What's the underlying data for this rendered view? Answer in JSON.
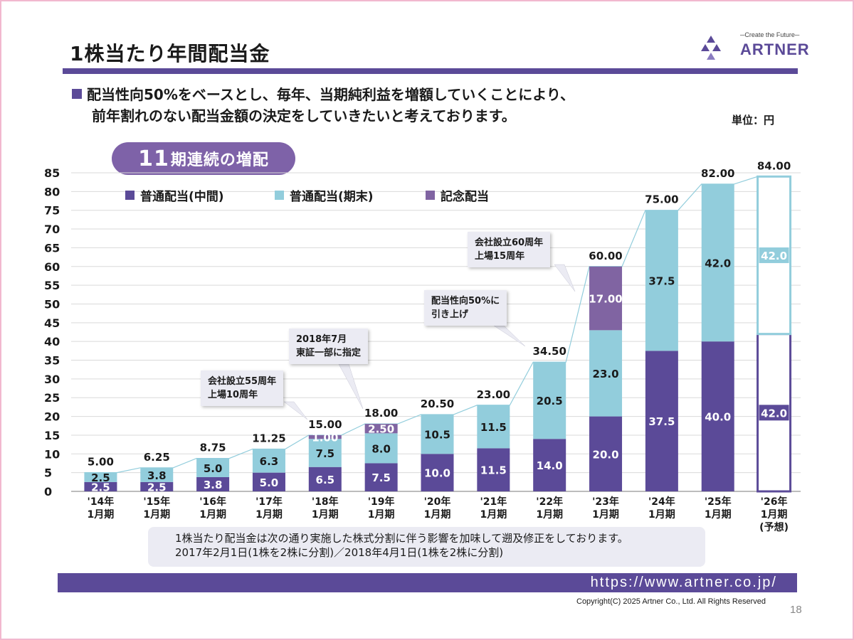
{
  "title": "1株当たり年間配当金",
  "logo": {
    "tagline": "─Create the Future─",
    "name": "ARTNER"
  },
  "description": [
    "配当性向50%をベースとし、毎年、当期純利益を増額していくことにより、",
    "前年割れのない配当金額の決定をしていきたいと考えております。"
  ],
  "unit": "単位：円",
  "badge": {
    "number": "11",
    "text": "期連続の増配"
  },
  "colors": {
    "interim": "#5b4a98",
    "year_end": "#92cddc",
    "commemorative": "#8064a2",
    "accent": "#5b4a98"
  },
  "chart_data": {
    "type": "bar",
    "stacked": true,
    "categories": [
      "'14年 1月期",
      "'15年 1月期",
      "'16年 1月期",
      "'17年 1月期",
      "'18年 1月期",
      "'19年 1月期",
      "'20年 1月期",
      "'21年 1月期",
      "'22年 1月期",
      "'23年 1月期",
      "'24年 1月期",
      "'25年 1月期",
      "'26年 1月期 (予想)"
    ],
    "x_tick_lines": [
      [
        "'14年",
        "1月期"
      ],
      [
        "'15年",
        "1月期"
      ],
      [
        "'16年",
        "1月期"
      ],
      [
        "'17年",
        "1月期"
      ],
      [
        "'18年",
        "1月期"
      ],
      [
        "'19年",
        "1月期"
      ],
      [
        "'20年",
        "1月期"
      ],
      [
        "'21年",
        "1月期"
      ],
      [
        "'22年",
        "1月期"
      ],
      [
        "'23年",
        "1月期"
      ],
      [
        "'24年",
        "1月期"
      ],
      [
        "'25年",
        "1月期"
      ],
      [
        "'26年",
        "1月期",
        "(予想)"
      ]
    ],
    "series": [
      {
        "name": "普通配当(中間)",
        "values": [
          2.5,
          2.5,
          3.8,
          5.0,
          6.5,
          7.5,
          10.0,
          11.5,
          14.0,
          20.0,
          37.5,
          40.0,
          42.0
        ],
        "labels": [
          "2.5",
          "2.5",
          "3.8",
          "5.0",
          "6.5",
          "7.5",
          "10.0",
          "11.5",
          "14.0",
          "20.0",
          "37.5",
          "40.0",
          "42.0"
        ]
      },
      {
        "name": "普通配当(期末)",
        "values": [
          2.5,
          3.8,
          5.0,
          6.3,
          7.5,
          8.0,
          10.5,
          11.5,
          20.5,
          23.0,
          37.5,
          42.0,
          42.0
        ],
        "labels": [
          "2.5",
          "3.8",
          "5.0",
          "6.3",
          "7.5",
          "8.0",
          "10.5",
          "11.5",
          "20.5",
          "23.0",
          "37.5",
          "42.0",
          "42.0"
        ]
      },
      {
        "name": "記念配当",
        "values": [
          0,
          0,
          0,
          0,
          1.0,
          2.5,
          0,
          0,
          0,
          17.0,
          0,
          0,
          0
        ],
        "labels": [
          "",
          "",
          "",
          "",
          "1.00",
          "2.50",
          "",
          "",
          "",
          "17.00",
          "",
          "",
          ""
        ]
      }
    ],
    "totals": [
      "5.00",
      "6.25",
      "8.75",
      "11.25",
      "15.00",
      "18.00",
      "20.50",
      "23.00",
      "34.50",
      "60.00",
      "75.00",
      "82.00",
      "84.00"
    ],
    "forecast_index": 12,
    "ylim": [
      0,
      85
    ],
    "yticks": [
      0,
      5,
      10,
      15,
      20,
      25,
      30,
      35,
      40,
      45,
      50,
      55,
      60,
      65,
      70,
      75,
      80,
      85
    ],
    "grid": true,
    "legend": "top-left",
    "annotations": [
      {
        "lines": [
          "会社設立55周年",
          "上場10周年"
        ],
        "target_index": 4
      },
      {
        "lines": [
          "2018年7月",
          "東証一部に指定"
        ],
        "target_index": 5
      },
      {
        "lines": [
          "配当性向50%に",
          "引き上げ"
        ],
        "target_index": 8
      },
      {
        "lines": [
          "会社設立60周年",
          "上場15周年"
        ],
        "target_index": 9
      }
    ]
  },
  "footnote": [
    "1株当たり配当金は次の通り実施した株式分割に伴う影響を加味して遡及修正をしております。",
    "2017年2月1日(1株を2株に分割)／2018年4月1日(1株を2株に分割)"
  ],
  "url": "https://www.artner.co.jp/",
  "copyright": "Copyright(C) 2025 Artner Co., Ltd. All Rights Reserved",
  "page_number": "18"
}
